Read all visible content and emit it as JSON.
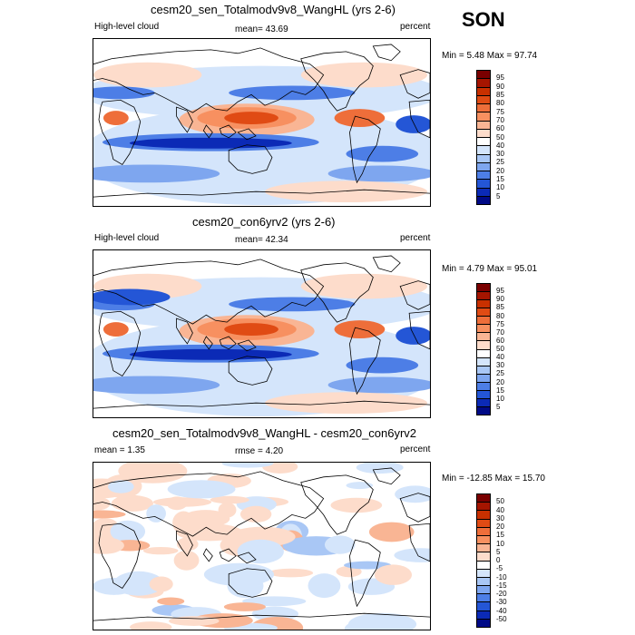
{
  "season": "SON",
  "panels": [
    {
      "title": "cesm20_sen_Totalmodv9v8_WangHL (yrs 2-6)",
      "left_label": "High-level cloud",
      "center_label": "mean=  43.69",
      "right_label": "percent",
      "minmax": "Min =   5.48 Max =  97.74",
      "colorbar_labels": [
        "95",
        "90",
        "85",
        "80",
        "75",
        "70",
        "60",
        "50",
        "40",
        "30",
        "25",
        "20",
        "15",
        "10",
        "5"
      ]
    },
    {
      "title": "cesm20_con6yrv2 (yrs 2-6)",
      "left_label": "High-level cloud",
      "center_label": "mean=  42.34",
      "right_label": "percent",
      "minmax": "Min =   4.79 Max =  95.01",
      "colorbar_labels": [
        "95",
        "90",
        "85",
        "80",
        "75",
        "70",
        "60",
        "50",
        "40",
        "30",
        "25",
        "20",
        "15",
        "10",
        "5"
      ]
    },
    {
      "title": "cesm20_sen_Totalmodv9v8_WangHL - cesm20_con6yrv2",
      "left_label": "mean =   1.35",
      "center_label": "rmse =   4.20",
      "right_label": "percent",
      "minmax": "Min = -12.85 Max =  15.70",
      "colorbar_labels": [
        "50",
        "40",
        "30",
        "20",
        "15",
        "10",
        "5",
        "0",
        "-5",
        "-10",
        "-15",
        "-20",
        "-30",
        "-40",
        "-50"
      ]
    }
  ],
  "colors": {
    "seq": [
      "#7a0000",
      "#a51500",
      "#c83000",
      "#e04b14",
      "#ee6e3a",
      "#f79060",
      "#f9b594",
      "#fddccb",
      "#ffffff",
      "#d4e5fb",
      "#a9c7f5",
      "#7ea6ef",
      "#4d7ee6",
      "#2456d6",
      "#0b2ab6",
      "#000a86"
    ],
    "diff": [
      "#7a0000",
      "#a51500",
      "#c83000",
      "#e04b14",
      "#ee6e3a",
      "#f79060",
      "#f9b594",
      "#fddccb",
      "#ffffff",
      "#d4e5fb",
      "#a9c7f5",
      "#7ea6ef",
      "#4d7ee6",
      "#2456d6",
      "#0b2ab6",
      "#000a86"
    ]
  }
}
